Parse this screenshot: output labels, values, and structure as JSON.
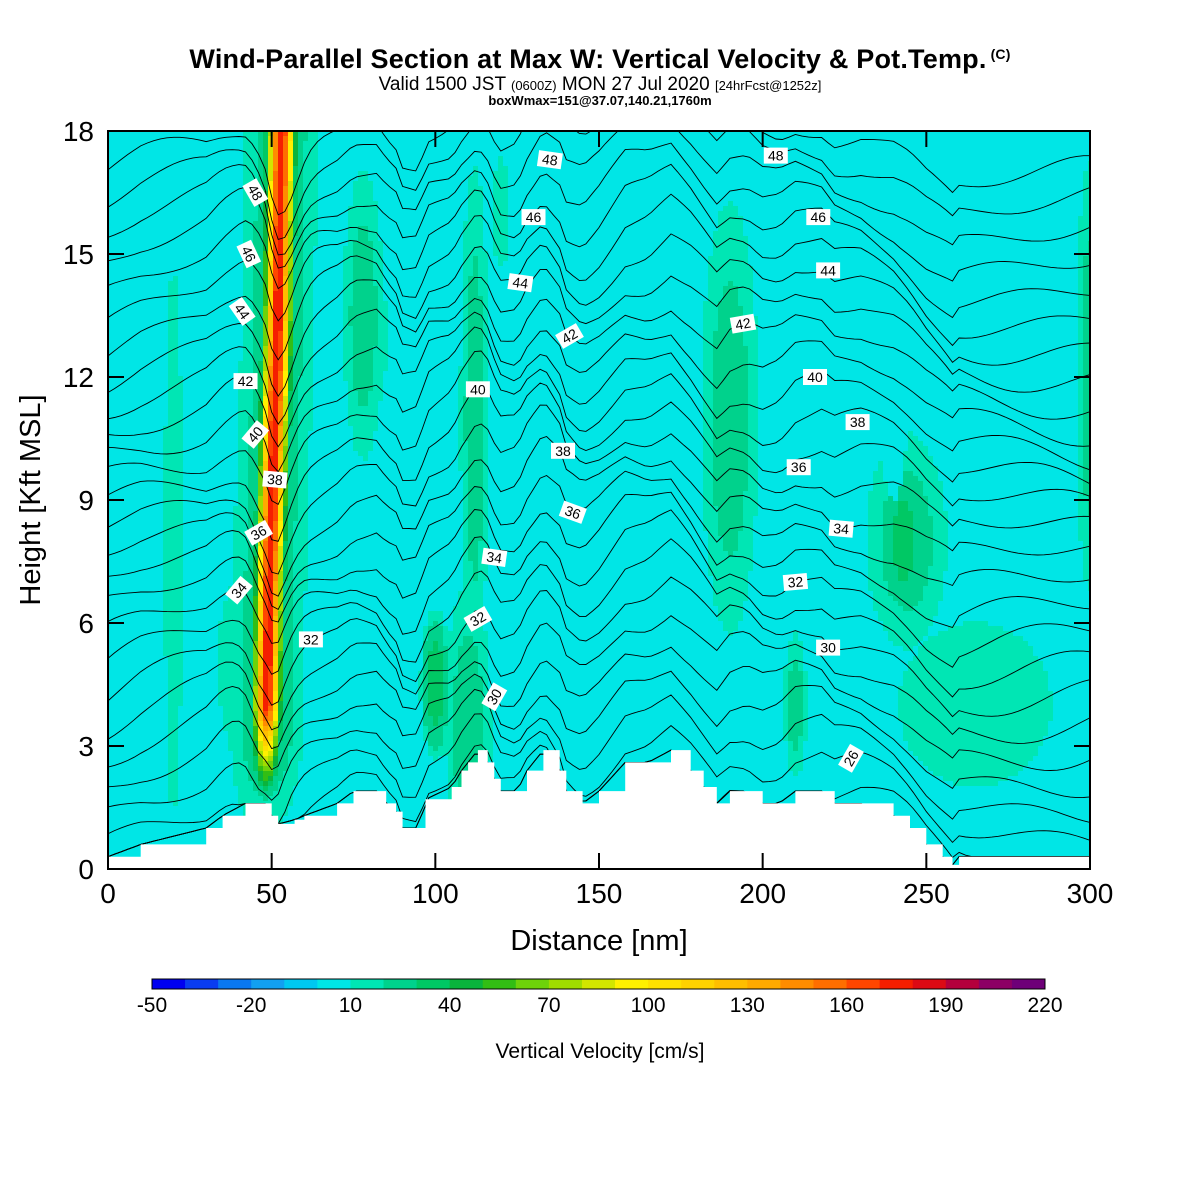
{
  "header": {
    "title_main": "Wind-Parallel Section at Max W: Vertical Velocity & Pot.Temp.",
    "title_mark": "(C)",
    "valid_a": "Valid 1500 JST",
    "valid_b": "(0600Z)",
    "valid_c": "MON 27 Jul 2020",
    "valid_d": "[24hrFcst@1252z]",
    "box_line": "boxWmax=151@37.07,140.21,1760m"
  },
  "chart_data": {
    "type": "heatmap",
    "xlabel": "Distance [nm]",
    "ylabel": "Height [Kft MSL]",
    "xlim": [
      0,
      300
    ],
    "ylim": [
      0,
      18
    ],
    "xticks": [
      0,
      50,
      100,
      150,
      200,
      250,
      300
    ],
    "yticks": [
      0,
      3,
      6,
      9,
      12,
      15,
      18
    ],
    "colorbar": {
      "label": "Vertical Velocity [cm/s]",
      "min": -50,
      "max": 220,
      "step": 10,
      "tick_values": [
        -50,
        -20,
        10,
        40,
        70,
        100,
        130,
        160,
        190,
        220
      ],
      "colors": [
        "#0000f0",
        "#0a3cf0",
        "#0a78f0",
        "#12a0f0",
        "#00c8f0",
        "#00e6e6",
        "#00e6b4",
        "#00d28c",
        "#00c864",
        "#0ab43c",
        "#32be14",
        "#6ed20a",
        "#a0dc00",
        "#d2e600",
        "#fff000",
        "#ffe100",
        "#ffd200",
        "#ffbe00",
        "#ffaa00",
        "#ff8c00",
        "#ff6e00",
        "#ff4600",
        "#f51e00",
        "#dc0a14",
        "#b4003c",
        "#8c0064",
        "#6e0078"
      ]
    },
    "background_value": 0,
    "regions": [
      {
        "w": 10,
        "x": 20,
        "y": 8,
        "rx": 4,
        "ry": 10
      },
      {
        "w": 10,
        "x": 80,
        "y": 13,
        "rx": 8,
        "ry": 3
      },
      {
        "w": 10,
        "x": 120,
        "y": 16,
        "rx": 4,
        "ry": 2
      },
      {
        "w": 10,
        "x": 265,
        "y": 4,
        "rx": 35,
        "ry": 3
      },
      {
        "w": 10,
        "x": 40,
        "y": 5,
        "rx": 10,
        "ry": 3
      },
      {
        "w": 20,
        "x": 110,
        "y": 3.5,
        "rx": 8,
        "ry": 4
      },
      {
        "w": 20,
        "x": 112,
        "y": 11,
        "rx": 5,
        "ry": 7
      },
      {
        "w": 20,
        "x": 78,
        "y": 13.5,
        "rx": 7,
        "ry": 4
      },
      {
        "w": 20,
        "x": 190,
        "y": 11,
        "rx": 10,
        "ry": 6
      },
      {
        "w": 20,
        "x": 244,
        "y": 8,
        "rx": 14,
        "ry": 3
      },
      {
        "w": 20,
        "x": 210,
        "y": 4,
        "rx": 4,
        "ry": 2
      },
      {
        "w": 20,
        "x": 300,
        "y": 12,
        "rx": 5,
        "ry": 6
      },
      {
        "w": 30,
        "x": 100,
        "y": 4.5,
        "rx": 5,
        "ry": 2
      },
      {
        "w": 30,
        "x": 243,
        "y": 8,
        "rx": 6,
        "ry": 2
      },
      {
        "w": -10,
        "x": 5,
        "y": 9,
        "rx": 6,
        "ry": 4
      },
      {
        "w": -10,
        "x": 140,
        "y": 6,
        "rx": 10,
        "ry": 3
      },
      {
        "w": -10,
        "x": 100,
        "y": 14,
        "rx": 6,
        "ry": 5
      },
      {
        "w": -10,
        "x": 155,
        "y": 12,
        "rx": 5,
        "ry": 4
      },
      {
        "w": -10,
        "x": 212,
        "y": 13,
        "rx": 5,
        "ry": 3
      },
      {
        "w": -10,
        "x": 178,
        "y": 5,
        "rx": 6,
        "ry": 3
      },
      {
        "w": -10,
        "x": 72,
        "y": 4,
        "rx": 6,
        "ry": 2
      },
      {
        "w": -20,
        "x": 240,
        "y": 13,
        "rx": 5,
        "ry": 4
      },
      {
        "w": -20,
        "x": 212,
        "y": 14,
        "rx": 3,
        "ry": 2
      },
      {
        "w": -20,
        "x": 48,
        "y": 16.5,
        "rx": 3,
        "ry": 3
      },
      {
        "w": -30,
        "x": 53,
        "y": 3,
        "rx": 2.5,
        "ry": 2
      },
      {
        "w": -30,
        "x": 240,
        "y": 12.5,
        "rx": 2,
        "ry": 2
      },
      {
        "w": -50,
        "x": 53,
        "y": 3.3,
        "rx": 1.2,
        "ry": 1.2
      }
    ],
    "updraft": {
      "baseline": [
        [
          0,
          48
        ],
        [
          4,
          48.5
        ],
        [
          7,
          49.3
        ],
        [
          10,
          50.5
        ],
        [
          13,
          51.8
        ],
        [
          16,
          52.5
        ],
        [
          18,
          53
        ]
      ],
      "peak_w": 180,
      "sigma_nm": 2.6,
      "flank_w": 35,
      "flank_sigma_nm": 7
    },
    "terrain": [
      [
        0,
        0.3
      ],
      [
        10,
        0.6
      ],
      [
        30,
        1.0
      ],
      [
        35,
        1.3
      ],
      [
        42,
        1.6
      ],
      [
        48,
        1.6
      ],
      [
        50,
        1.3
      ],
      [
        52,
        1.1
      ],
      [
        57,
        1.2
      ],
      [
        60,
        1.3
      ],
      [
        70,
        1.6
      ],
      [
        75,
        1.9
      ],
      [
        82,
        1.9
      ],
      [
        85,
        1.6
      ],
      [
        88,
        1.4
      ],
      [
        90,
        1.0
      ],
      [
        95,
        1.0
      ],
      [
        97,
        1.7
      ],
      [
        105,
        2.0
      ],
      [
        108,
        2.4
      ],
      [
        110,
        2.6
      ],
      [
        113,
        2.9
      ],
      [
        116,
        2.6
      ],
      [
        118,
        2.2
      ],
      [
        120,
        1.9
      ],
      [
        125,
        1.9
      ],
      [
        128,
        2.4
      ],
      [
        133,
        2.9
      ],
      [
        138,
        2.4
      ],
      [
        140,
        1.9
      ],
      [
        145,
        1.6
      ],
      [
        150,
        1.9
      ],
      [
        158,
        2.6
      ],
      [
        165,
        2.6
      ],
      [
        172,
        2.9
      ],
      [
        178,
        2.4
      ],
      [
        182,
        2.0
      ],
      [
        186,
        1.6
      ],
      [
        190,
        1.9
      ],
      [
        195,
        1.9
      ],
      [
        200,
        1.6
      ],
      [
        205,
        1.6
      ],
      [
        210,
        1.9
      ],
      [
        218,
        1.9
      ],
      [
        222,
        1.6
      ],
      [
        230,
        1.6
      ],
      [
        240,
        1.3
      ],
      [
        245,
        1.0
      ],
      [
        250,
        0.6
      ],
      [
        255,
        0.3
      ],
      [
        258,
        0.1
      ],
      [
        260,
        0.3
      ],
      [
        270,
        0.3
      ],
      [
        300,
        0.3
      ]
    ],
    "isentropes": {
      "theta_min": 22,
      "theta_max": 50,
      "theta_step": 1,
      "base_theta_at_surface": 25,
      "kft_per_theta": 0.66,
      "labeled_levels": [
        26,
        30,
        32,
        34,
        36,
        38,
        40,
        42,
        44,
        46,
        48
      ],
      "labels": [
        {
          "text": "48",
          "x": 45,
          "y": 16.5,
          "angle": 60
        },
        {
          "text": "46",
          "x": 43,
          "y": 15.0,
          "angle": 65
        },
        {
          "text": "44",
          "x": 41,
          "y": 13.6,
          "angle": 55
        },
        {
          "text": "42",
          "x": 42,
          "y": 11.9,
          "angle": 0
        },
        {
          "text": "40",
          "x": 45,
          "y": 10.6,
          "angle": -50
        },
        {
          "text": "38",
          "x": 51,
          "y": 9.5,
          "angle": 5
        },
        {
          "text": "36",
          "x": 46,
          "y": 8.2,
          "angle": -30
        },
        {
          "text": "34",
          "x": 40,
          "y": 6.8,
          "angle": -50
        },
        {
          "text": "32",
          "x": 62,
          "y": 5.6,
          "angle": 0
        },
        {
          "text": "48",
          "x": 135,
          "y": 17.3,
          "angle": 8
        },
        {
          "text": "46",
          "x": 130,
          "y": 15.9,
          "angle": 0
        },
        {
          "text": "44",
          "x": 126,
          "y": 14.3,
          "angle": 8
        },
        {
          "text": "42",
          "x": 141,
          "y": 13.0,
          "angle": -30
        },
        {
          "text": "40",
          "x": 113,
          "y": 11.7,
          "angle": 0
        },
        {
          "text": "38",
          "x": 139,
          "y": 10.2,
          "angle": 0
        },
        {
          "text": "36",
          "x": 142,
          "y": 8.7,
          "angle": 20
        },
        {
          "text": "34",
          "x": 118,
          "y": 7.6,
          "angle": 8
        },
        {
          "text": "32",
          "x": 113,
          "y": 6.1,
          "angle": -30
        },
        {
          "text": "30",
          "x": 118,
          "y": 4.2,
          "angle": -60
        },
        {
          "text": "48",
          "x": 204,
          "y": 17.4,
          "angle": 0
        },
        {
          "text": "46",
          "x": 217,
          "y": 15.9,
          "angle": 0
        },
        {
          "text": "44",
          "x": 220,
          "y": 14.6,
          "angle": 0
        },
        {
          "text": "42",
          "x": 194,
          "y": 13.3,
          "angle": -10
        },
        {
          "text": "40",
          "x": 216,
          "y": 12.0,
          "angle": 0
        },
        {
          "text": "38",
          "x": 229,
          "y": 10.9,
          "angle": 0
        },
        {
          "text": "36",
          "x": 211,
          "y": 9.8,
          "angle": 0
        },
        {
          "text": "34",
          "x": 224,
          "y": 8.3,
          "angle": 5
        },
        {
          "text": "32",
          "x": 210,
          "y": 7.0,
          "angle": -5
        },
        {
          "text": "30",
          "x": 220,
          "y": 5.4,
          "angle": 0
        },
        {
          "text": "26",
          "x": 227,
          "y": 2.7,
          "angle": -60
        }
      ]
    }
  }
}
